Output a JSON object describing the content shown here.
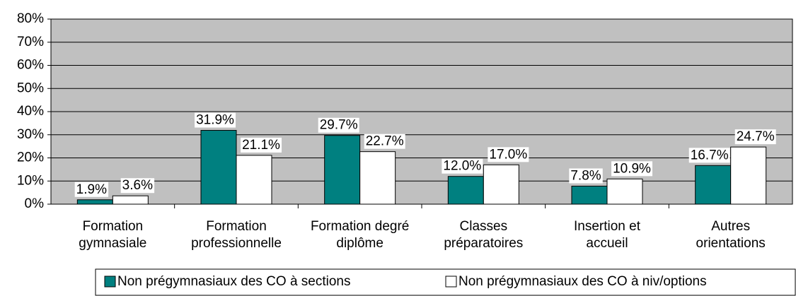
{
  "chart_data": {
    "type": "bar",
    "categories": [
      "Formation\ngymnasiale",
      "Formation\nprofessionnelle",
      "Formation degré\ndiplôme",
      "Classes\npréparatoires",
      "Insertion et\naccueil",
      "Autres\norientations"
    ],
    "series": [
      {
        "name": "Non prégymnasiaux des CO à sections",
        "color": "#008080",
        "values": [
          1.9,
          31.9,
          29.7,
          12.0,
          7.8,
          16.7
        ],
        "value_labels": [
          "1.9%",
          "31.9%",
          "29.7%",
          "12.0%",
          "7.8%",
          "16.7%"
        ]
      },
      {
        "name": "Non prégymnasiaux des CO à niv/options",
        "color": "#ffffff",
        "values": [
          3.6,
          21.1,
          22.7,
          17.0,
          10.9,
          24.7
        ],
        "value_labels": [
          "3.6%",
          "21.1%",
          "22.7%",
          "17.0%",
          "10.9%",
          "24.7%"
        ]
      }
    ],
    "ylim": [
      0,
      80
    ],
    "yticks": [
      {
        "value": 0,
        "label": "0%"
      },
      {
        "value": 10,
        "label": "10%"
      },
      {
        "value": 20,
        "label": "20%"
      },
      {
        "value": 30,
        "label": "30%"
      },
      {
        "value": 40,
        "label": "40%"
      },
      {
        "value": 50,
        "label": "50%"
      },
      {
        "value": 60,
        "label": "60%"
      },
      {
        "value": 70,
        "label": "70%"
      },
      {
        "value": 80,
        "label": "80%"
      }
    ],
    "grid": true,
    "legend": "bottom"
  }
}
